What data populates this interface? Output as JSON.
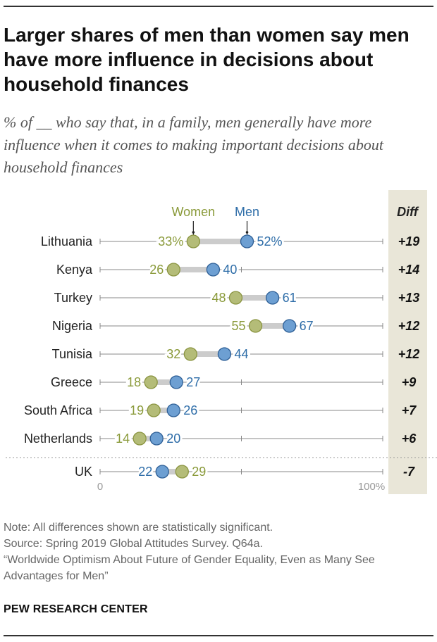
{
  "header": {
    "title": "Larger shares of men than women say men have more influence in decisions about household finances",
    "subtitle": "% of __ who say that, in a family, men generally have more influence when it comes to making important decisions about household finances"
  },
  "colors": {
    "women": "#a9b464",
    "women_fill": "#b4bc78",
    "women_text": "#8a9a3a",
    "men": "#3e7eb9",
    "men_fill": "#6d9fd2",
    "men_text": "#2e6da8",
    "diff_panel": "#e9e6d8",
    "connector": "#cccccc",
    "axis": "#888888"
  },
  "chart_data": {
    "type": "dot",
    "xlim": [
      0,
      100
    ],
    "legend": {
      "women": "Women",
      "men": "Men"
    },
    "diff_header": "Diff",
    "axis_labels": {
      "min": "0",
      "max": "100%"
    },
    "rows": [
      {
        "country": "Lithuania",
        "women": 33,
        "men": 52,
        "women_label": "33%",
        "men_label": "52%",
        "diff": "+19"
      },
      {
        "country": "Kenya",
        "women": 26,
        "men": 40,
        "women_label": "26",
        "men_label": "40",
        "diff": "+14"
      },
      {
        "country": "Turkey",
        "women": 48,
        "men": 61,
        "women_label": "48",
        "men_label": "61",
        "diff": "+13"
      },
      {
        "country": "Nigeria",
        "women": 55,
        "men": 67,
        "women_label": "55",
        "men_label": "67",
        "diff": "+12"
      },
      {
        "country": "Tunisia",
        "women": 32,
        "men": 44,
        "women_label": "32",
        "men_label": "44",
        "diff": "+12"
      },
      {
        "country": "Greece",
        "women": 18,
        "men": 27,
        "women_label": "18",
        "men_label": "27",
        "diff": "+9"
      },
      {
        "country": "South Africa",
        "women": 19,
        "men": 26,
        "women_label": "19",
        "men_label": "26",
        "diff": "+7"
      },
      {
        "country": "Netherlands",
        "women": 14,
        "men": 20,
        "women_label": "14",
        "men_label": "20",
        "diff": "+6"
      },
      {
        "country": "UK",
        "women": 29,
        "men": 22,
        "women_label": "29",
        "men_label": "22",
        "diff": "-7"
      }
    ]
  },
  "footer": {
    "note": "Note: All differences shown are statistically significant.",
    "source": "Source: Spring 2019 Global Attitudes Survey. Q64a.",
    "report": "“Worldwide Optimism About Future of Gender Equality, Even as Many See Advantages for Men”",
    "brand": "PEW RESEARCH CENTER"
  }
}
